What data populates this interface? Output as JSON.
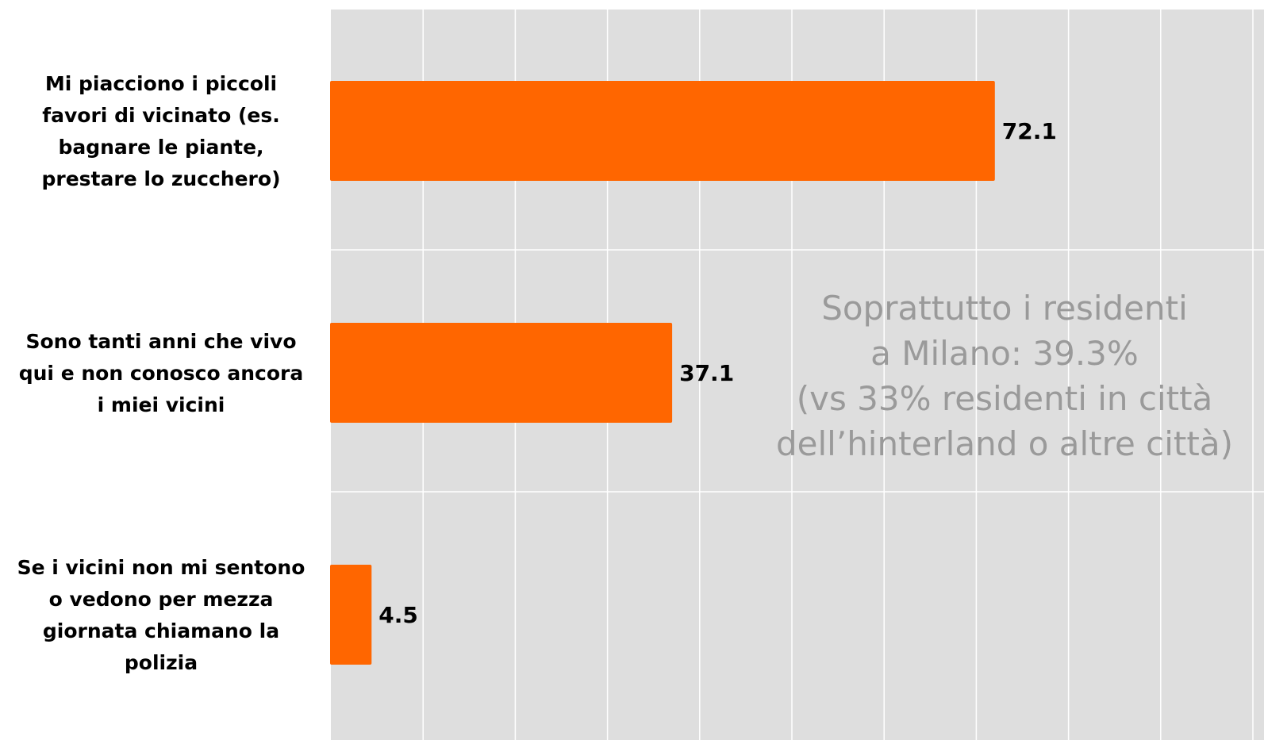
{
  "chart_data": {
    "type": "bar",
    "orientation": "horizontal",
    "categories": [
      [
        "Mi piacciono i piccoli",
        "favori di vicinato (es.",
        "bagnare le piante,",
        "prestare lo zucchero)"
      ],
      [
        "Sono tanti anni che vivo",
        "qui e non conosco ancora",
        "i miei vicini"
      ],
      [
        "Se i vicini non mi sentono",
        "o vedono per mezza",
        "giornata chiamano la",
        "polizia"
      ]
    ],
    "values": [
      72.1,
      37.1,
      4.5
    ],
    "value_labels": [
      "72.1",
      "37.1",
      "4.5"
    ],
    "xlim": [
      0,
      100
    ],
    "grid": true,
    "bar_color": "#ff6600",
    "plot_background": "#dedede",
    "annotation": [
      "Soprattutto i residenti",
      "a Milano: 39.3%",
      "(vs 33% residenti in città",
      "dell’hinterland o altre città)"
    ]
  }
}
